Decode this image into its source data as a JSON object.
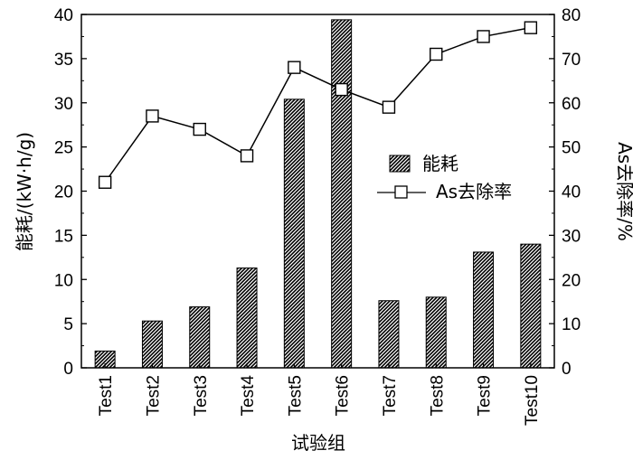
{
  "chart_data": {
    "type": "bar",
    "categories": [
      "Test1",
      "Test2",
      "Test3",
      "Test4",
      "Test5",
      "Test6",
      "Test7",
      "Test8",
      "Test9",
      "Test10"
    ],
    "series": [
      {
        "name": "能耗",
        "type": "bar",
        "axis": "left",
        "values": [
          1.9,
          5.3,
          6.9,
          11.3,
          30.4,
          39.4,
          7.6,
          8.0,
          13.1,
          14.0
        ]
      },
      {
        "name": "As去除率",
        "type": "line",
        "axis": "right",
        "marker": "square",
        "values": [
          42,
          57,
          54,
          48,
          68,
          63,
          59,
          71,
          75,
          77
        ]
      }
    ],
    "xlabel": "试验组",
    "ylabel_left": "能耗/(kW·h/g)",
    "ylabel_right": "As去除率/%",
    "ylim_left": [
      0,
      40
    ],
    "ylim_right": [
      0,
      80
    ],
    "yticks_left": [
      "0",
      "5",
      "10",
      "15",
      "20",
      "25",
      "30",
      "35",
      "40"
    ],
    "yticks_right": [
      "0",
      "10",
      "20",
      "30",
      "40",
      "50",
      "60",
      "70",
      "80"
    ],
    "legend_position": "right-middle",
    "grid": false,
    "bar_fill": "hatched",
    "colors": {
      "line": "#000000",
      "bar": "#000000",
      "background": "#ffffff"
    }
  }
}
